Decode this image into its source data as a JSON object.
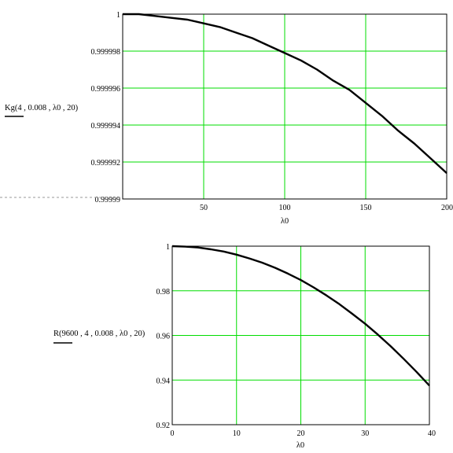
{
  "chart_data": [
    {
      "type": "line",
      "title": "",
      "ylabel": "Kg(4 , 0.008 , λ0 , 20)",
      "xlabel": "λ0",
      "xlim": [
        0,
        200
      ],
      "ylim": [
        0.99999,
        1.0
      ],
      "x_ticks": [
        50,
        100,
        150,
        200
      ],
      "x_tick_labels": [
        "50",
        "100",
        "150",
        "200"
      ],
      "y_ticks": [
        0.99999,
        0.999992,
        0.999994,
        0.999996,
        0.999998,
        1.0
      ],
      "y_tick_labels": [
        "0.99999",
        "0.999992",
        "0.999994",
        "0.999996",
        "0.999998",
        "1"
      ],
      "grid": true,
      "grid_color": "#00dd00",
      "series": [
        {
          "x": [
            0,
            10,
            20,
            30,
            40,
            50,
            60,
            70,
            80,
            90,
            100,
            110,
            120,
            130,
            140,
            150,
            160,
            170,
            180,
            190,
            200
          ],
          "y": [
            1.0,
            1.0,
            0.9999999,
            0.9999998,
            0.9999997,
            0.9999995,
            0.9999993,
            0.999999,
            0.9999987,
            0.9999983,
            0.9999979,
            0.9999975,
            0.999997,
            0.9999964,
            0.9999959,
            0.9999952,
            0.9999945,
            0.9999937,
            0.999993,
            0.9999922,
            0.9999914
          ]
        }
      ]
    },
    {
      "type": "line",
      "title": "",
      "ylabel": "R(9600 , 4 , 0.008 , λ0 , 20)",
      "xlabel": "λ0",
      "xlim": [
        0,
        40
      ],
      "ylim": [
        0.92,
        1.0
      ],
      "x_ticks": [
        0,
        10,
        20,
        30,
        40
      ],
      "x_tick_labels": [
        "0",
        "10",
        "20",
        "30",
        "40"
      ],
      "y_ticks": [
        0.92,
        0.94,
        0.96,
        0.98,
        1.0
      ],
      "y_tick_labels": [
        "0.92",
        "0.94",
        "0.96",
        "0.98",
        "1"
      ],
      "grid": true,
      "grid_color": "#00dd00",
      "series": [
        {
          "x": [
            0,
            2,
            4,
            6,
            8,
            10,
            12,
            14,
            16,
            18,
            20,
            22,
            24,
            26,
            28,
            30,
            32,
            34,
            36,
            38,
            40
          ],
          "y": [
            1.0,
            0.9998,
            0.9994,
            0.9986,
            0.9976,
            0.9962,
            0.9945,
            0.9926,
            0.9903,
            0.9877,
            0.9848,
            0.9815,
            0.9779,
            0.974,
            0.9697,
            0.9652,
            0.9603,
            0.9551,
            0.9495,
            0.9437,
            0.9375
          ]
        }
      ]
    }
  ],
  "colors": {
    "grid": "#00dd00",
    "frame": "#000000",
    "curve": "#000000",
    "separator": "#9a9a9a"
  }
}
